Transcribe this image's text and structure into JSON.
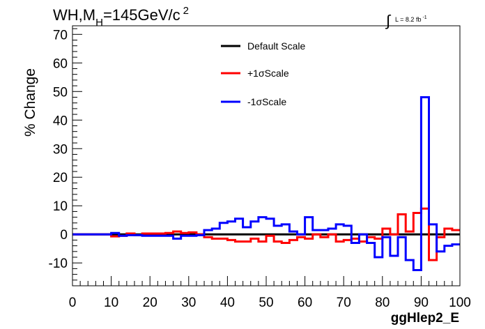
{
  "chart_data": {
    "type": "line",
    "title": {
      "pre": "WH,M",
      "sub": "H",
      "mid": "=145GeV/c",
      "sup": "2"
    },
    "lumi": {
      "symbol": "∫",
      "label": "L = 8.2 fb",
      "exp": "-1"
    },
    "xlabel": "ggHlep2_E",
    "ylabel": "% Change",
    "xlim": [
      0,
      100
    ],
    "ylim": [
      -18,
      73
    ],
    "xticks": [
      0,
      10,
      20,
      30,
      40,
      50,
      60,
      70,
      80,
      90,
      100
    ],
    "yticks": [
      -10,
      0,
      10,
      20,
      30,
      40,
      50,
      60,
      70
    ],
    "bin_edges": [
      0,
      2,
      4,
      6,
      8,
      10,
      12,
      14,
      16,
      18,
      20,
      22,
      24,
      26,
      28,
      30,
      32,
      34,
      36,
      38,
      40,
      42,
      44,
      46,
      48,
      50,
      52,
      54,
      56,
      58,
      60,
      62,
      64,
      66,
      68,
      70,
      72,
      74,
      76,
      78,
      80,
      82,
      84,
      86,
      88,
      90,
      92,
      94,
      96,
      98,
      100
    ],
    "series": [
      {
        "name": "Default Scale",
        "color": "#000000",
        "values": [
          0,
          0,
          0,
          0,
          0,
          0,
          0,
          0,
          0,
          0,
          0,
          0,
          0,
          0,
          0,
          0,
          0,
          0,
          0,
          0,
          0,
          0,
          0,
          0,
          0,
          0,
          0,
          0,
          0,
          0,
          0,
          0,
          0,
          0,
          0,
          0,
          0,
          0,
          0,
          0,
          0,
          0,
          0,
          0,
          0,
          0,
          0,
          0,
          0,
          0
        ]
      },
      {
        "name": "+1σScale",
        "color": "#ff0000",
        "values": [
          0,
          0,
          0,
          0,
          0,
          -0.7,
          -0.5,
          0.3,
          -0.3,
          0.3,
          0.3,
          0.3,
          0.5,
          1,
          0.5,
          0.7,
          0,
          -1,
          -1.5,
          -1.5,
          -2,
          -2.5,
          -2.5,
          -1.5,
          -2.5,
          -0.5,
          -2.5,
          -3,
          -2,
          -1,
          -1.5,
          0,
          -1,
          0,
          -2.5,
          -2,
          -1.5,
          -2.5,
          -1,
          -1.5,
          2,
          0,
          7,
          1,
          7.5,
          9,
          -9,
          -1,
          2,
          1.5
        ]
      },
      {
        "name": "-1σScale",
        "color": "#0000ff",
        "values": [
          0,
          0,
          0,
          0,
          0,
          0.5,
          -0.5,
          -0.3,
          -0.3,
          -0.5,
          -0.5,
          -0.5,
          -0.5,
          -1.5,
          -0.5,
          -0.5,
          -0.3,
          1.5,
          2,
          4,
          4.5,
          5.5,
          2.5,
          4.5,
          6,
          5.5,
          3,
          3.5,
          1,
          0,
          6,
          1.5,
          1.5,
          2,
          3.5,
          3,
          -3,
          0,
          -3,
          -8,
          -1,
          -7.5,
          -1,
          -9,
          -12.5,
          48,
          3.5,
          -6,
          -4,
          -3.5
        ]
      }
    ],
    "legend": {
      "position": "top-center"
    }
  }
}
